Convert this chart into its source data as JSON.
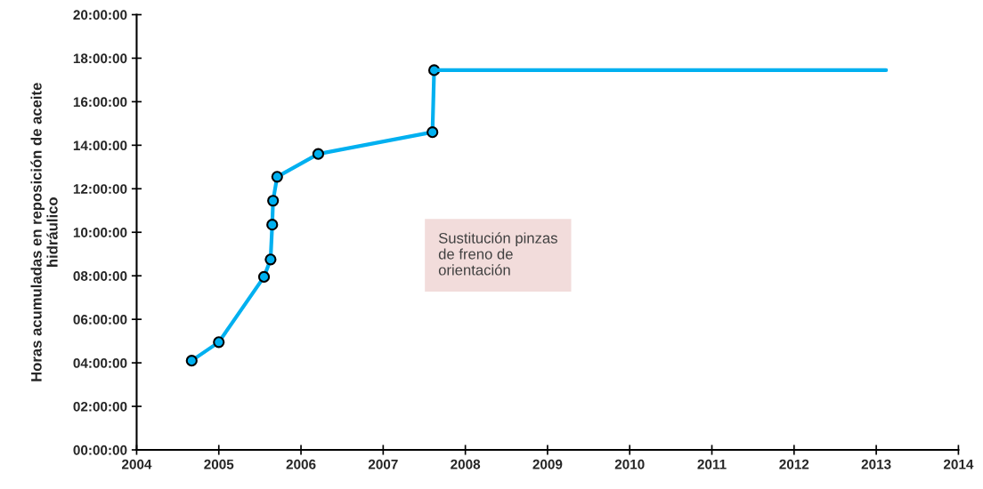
{
  "chart_data": {
    "type": "line",
    "ylabel": "Horas acumuladas en reposición de aceite\nhidráulico",
    "series": [
      {
        "color": "#00b0f0",
        "marker": "circle",
        "x": [
          2004.67,
          2005.0,
          2005.55,
          2005.63,
          2005.65,
          2005.66,
          2005.71,
          2006.21,
          2007.6,
          2007.62
        ],
        "values": [
          4.1,
          4.95,
          7.95,
          8.75,
          10.35,
          11.45,
          12.55,
          13.6,
          14.6,
          17.45
        ]
      },
      {
        "color": "#00b0f0",
        "marker": "none",
        "x": [
          2007.62,
          2013.12
        ],
        "values": [
          17.45,
          17.45
        ]
      }
    ],
    "xlim": [
      2004,
      2014
    ],
    "xticks": [
      2004,
      2005,
      2006,
      2007,
      2008,
      2009,
      2010,
      2011,
      2012,
      2013,
      2014
    ],
    "ylim": [
      0,
      20
    ],
    "yticks": [
      {
        "value": 0,
        "label": "00:00:00"
      },
      {
        "value": 2,
        "label": "02:00:00"
      },
      {
        "value": 4,
        "label": "04:00:00"
      },
      {
        "value": 6,
        "label": "06:00:00"
      },
      {
        "value": 8,
        "label": "08:00:00"
      },
      {
        "value": 10,
        "label": "10:00:00"
      },
      {
        "value": 12,
        "label": "12:00:00"
      },
      {
        "value": 14,
        "label": "14:00:00"
      },
      {
        "value": 16,
        "label": "16:00:00"
      },
      {
        "value": 18,
        "label": "18:00:00"
      },
      {
        "value": 20,
        "label": "20:00:00"
      }
    ],
    "grid": false,
    "annotations": [
      "Sustitución pinzas\nde freno de\norientación"
    ]
  }
}
